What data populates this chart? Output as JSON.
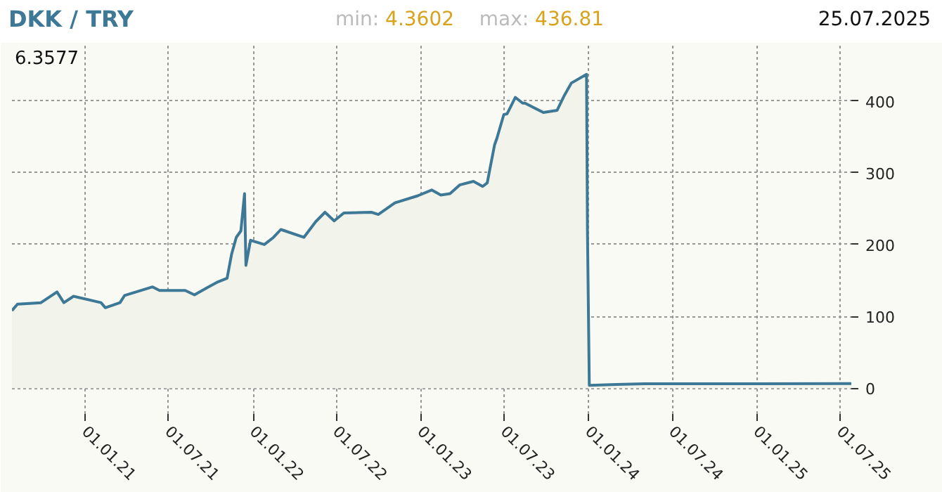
{
  "chart_data": {
    "type": "area",
    "title": "DKK / TRY",
    "annotations": [
      "min: 4.3602",
      "max: 436.81",
      "25.07.2025",
      "6.3577"
    ],
    "x": [
      "2020-07-25",
      "2020-08-06",
      "2020-09-26",
      "2020-10-31",
      "2020-11-15",
      "2020-12-06",
      "2021-02-04",
      "2021-02-13",
      "2021-03-17",
      "2021-03-27",
      "2021-05-27",
      "2021-06-11",
      "2021-08-06",
      "2021-08-26",
      "2021-09-20",
      "2021-10-16",
      "2021-11-05",
      "2021-11-15",
      "2021-11-25",
      "2021-12-05",
      "2021-12-13",
      "2021-12-16",
      "2021-12-26",
      "2022-01-25",
      "2022-02-14",
      "2022-03-02",
      "2022-04-21",
      "2022-05-17",
      "2022-06-06",
      "2022-06-26",
      "2022-07-17",
      "2022-09-15",
      "2022-09-30",
      "2022-11-05",
      "2022-12-25",
      "2023-01-24",
      "2023-02-13",
      "2023-03-05",
      "2023-03-26",
      "2023-04-25",
      "2023-05-15",
      "2023-05-25",
      "2023-05-31",
      "2023-06-10",
      "2023-06-15",
      "2023-06-30",
      "2023-07-07",
      "2023-07-25",
      "2023-08-10",
      "2023-08-15",
      "2023-09-24",
      "2023-10-24",
      "2023-11-09",
      "2023-11-24",
      "2023-12-27",
      "2023-12-29",
      "2024-01-02",
      "2024-03-01",
      "2024-05-01",
      "2024-07-01",
      "2025-01-01",
      "2025-07-25"
    ],
    "series": [
      {
        "color": "#3d7896",
        "values": [
          108,
          117,
          119,
          134,
          119,
          128,
          119,
          112,
          119,
          129,
          141,
          136,
          136,
          130,
          139,
          148,
          153,
          187,
          210,
          219,
          271,
          171,
          206,
          200,
          210,
          221,
          210,
          232,
          245,
          233,
          244,
          245,
          242,
          258,
          268,
          276,
          269,
          271,
          283,
          288,
          281,
          286,
          306,
          339,
          348,
          381,
          382,
          405,
          397,
          397,
          384,
          387,
          408,
          425,
          437,
          219,
          4,
          5,
          6,
          6,
          6,
          6.4
        ]
      }
    ],
    "xlim": [
      "2020-07-25",
      "2025-07-25"
    ],
    "xticks": [
      {
        "value": "2021-01-01",
        "label": "01.01.21"
      },
      {
        "value": "2021-07-01",
        "label": "01.07.21"
      },
      {
        "value": "2022-01-01",
        "label": "01.01.22"
      },
      {
        "value": "2022-07-01",
        "label": "01.07.22"
      },
      {
        "value": "2023-01-01",
        "label": "01.01.23"
      },
      {
        "value": "2023-07-01",
        "label": "01.07.23"
      },
      {
        "value": "2024-01-01",
        "label": "01.01.24"
      },
      {
        "value": "2024-07-01",
        "label": "01.07.24"
      },
      {
        "value": "2025-01-01",
        "label": "01.01.25"
      },
      {
        "value": "2025-07-01",
        "label": "01.07.25"
      }
    ],
    "ylim": [
      -36,
      477
    ],
    "yticks": [
      0,
      100,
      200,
      300,
      400
    ],
    "grid": true,
    "line_style": "solid"
  }
}
